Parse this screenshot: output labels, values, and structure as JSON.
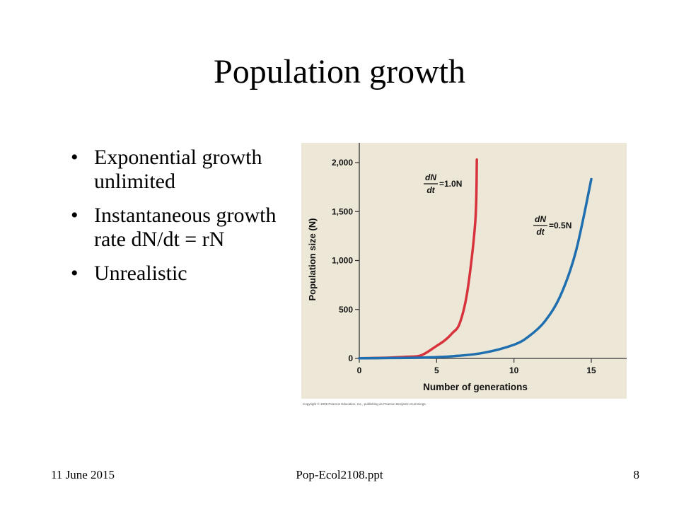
{
  "slide": {
    "title": "Population growth",
    "bullets": [
      {
        "text": "Exponential growth unlimited"
      },
      {
        "text": "Instantaneous growth rate dN/dt = rN"
      },
      {
        "text": "Unrealistic"
      }
    ],
    "footer": {
      "date": "11 June 2015",
      "file": "Pop-Ecol2108.ppt",
      "page": "8"
    }
  },
  "chart_data": {
    "type": "line",
    "title": "",
    "xlabel": "Number of generations",
    "ylabel": "Population size (N)",
    "xlim": [
      0,
      17
    ],
    "ylim": [
      0,
      2100
    ],
    "xticks": [
      0,
      5,
      10,
      15
    ],
    "xtick_labels": [
      "0",
      "5",
      "10",
      "15"
    ],
    "yticks": [
      0,
      500,
      1000,
      1500,
      2000
    ],
    "ytick_labels": [
      "0",
      "500",
      "1,000",
      "1,500",
      "2,000"
    ],
    "grid": false,
    "background": "#ece7d6",
    "copyright": "Copyright © 2008 Pearson Education, Inc., publishing as Pearson Benjamin Cummings.",
    "series": [
      {
        "name": "dN/dt = 1.0N",
        "label_parts": {
          "numerator": "dN",
          "denominator": "dt",
          "rhs": "=1.0N"
        },
        "color": "#d8323c",
        "x": [
          0,
          1,
          2,
          3,
          4,
          5,
          5.5,
          6,
          6.5,
          7,
          7.5,
          7.6
        ],
        "y": [
          2,
          4,
          8,
          16,
          32,
          128,
          181,
          256,
          362,
          700,
          1400,
          2030
        ]
      },
      {
        "name": "dN/dt = 0.5N",
        "label_parts": {
          "numerator": "dN",
          "denominator": "dt",
          "rhs": "=0.5N"
        },
        "color": "#1f6fb0",
        "x": [
          0,
          2,
          4,
          6,
          8,
          10,
          11,
          12,
          13,
          14,
          15
        ],
        "y": [
          2,
          4,
          8,
          22,
          56,
          140,
          230,
          380,
          640,
          1090,
          1830
        ]
      }
    ]
  }
}
